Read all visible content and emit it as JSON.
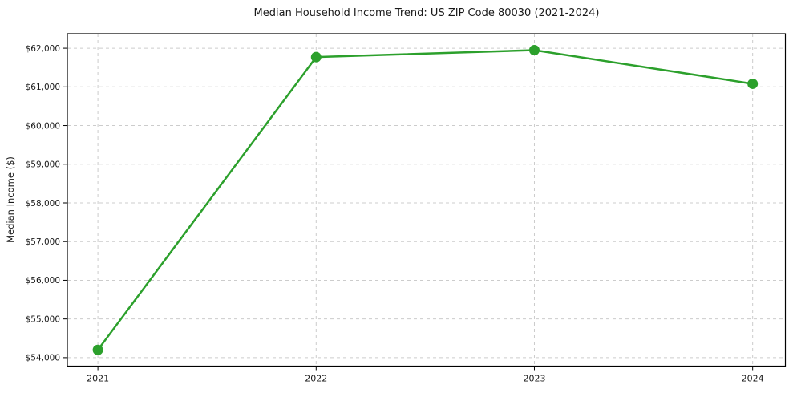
{
  "chart_data": {
    "type": "line",
    "title": "Median Household Income Trend: US ZIP Code 80030 (2021-2024)",
    "xlabel": "",
    "ylabel": "Median Income ($)",
    "x": [
      2021,
      2022,
      2023,
      2024
    ],
    "xtick_labels": [
      "2021",
      "2022",
      "2023",
      "2024"
    ],
    "series": [
      {
        "name": "Median Household Income",
        "color": "#2ca02c",
        "marker": "circle",
        "values": [
          54200,
          61770,
          61950,
          61080
        ]
      }
    ],
    "yticks": [
      54000,
      55000,
      56000,
      57000,
      58000,
      59000,
      60000,
      61000,
      62000
    ],
    "ytick_labels": [
      "$54,000",
      "$55,000",
      "$56,000",
      "$57,000",
      "$58,000",
      "$59,000",
      "$60,000",
      "$61,000",
      "$62,000"
    ],
    "xlim": [
      2020.86,
      2024.15
    ],
    "ylim": [
      53780,
      62375
    ],
    "grid": true,
    "grid_style": "dashed",
    "legend": "none",
    "colors": {
      "grid": "#cccccc",
      "spine": "#000000",
      "text": "#1a1a1a",
      "background": "#ffffff"
    }
  }
}
